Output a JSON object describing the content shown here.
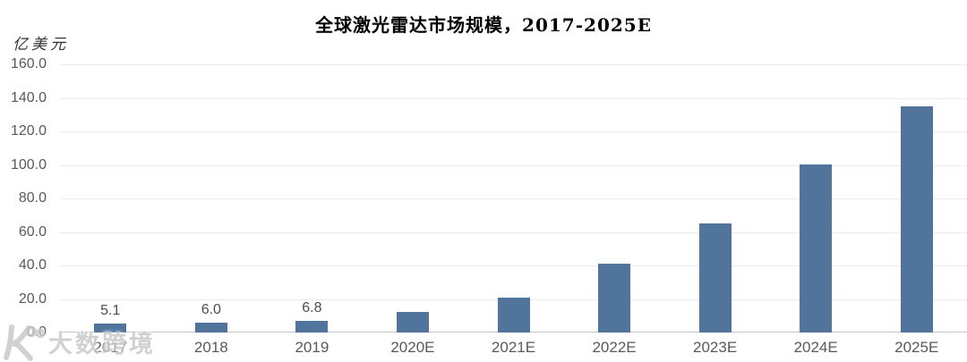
{
  "title": "全球激光雷达市场规模，2017-2025E",
  "y_axis": {
    "unit_label": "亿美元",
    "ticks": [
      "160.0",
      "140.0",
      "120.0",
      "100.0",
      "80.0",
      "60.0",
      "40.0",
      "20.0",
      "0.0"
    ]
  },
  "chart_data": {
    "type": "bar",
    "title": "全球激光雷达市场规模，2017-2025E",
    "ylabel": "亿美元",
    "xlabel": "",
    "ylim": [
      0,
      160
    ],
    "grid": true,
    "legend": false,
    "categories": [
      "2017",
      "2018",
      "2019",
      "2020E",
      "2021E",
      "2022E",
      "2023E",
      "2024E",
      "2025E"
    ],
    "values": [
      5.1,
      6.0,
      6.8,
      12,
      21,
      41,
      65,
      100,
      135
    ],
    "data_labels": [
      "5.1",
      "6.0",
      "6.8",
      "",
      "",
      "",
      "",
      "",
      ""
    ],
    "bar_color": "#50749B"
  },
  "watermark": {
    "logo_icon": "dashu-kuajing-logo",
    "text": "大数跨境"
  },
  "colors": {
    "background": "#ffffff",
    "bar": "#50749B",
    "gridline": "#eaeaea",
    "axis_line": "#c4c4c4",
    "tick_text": "#595959",
    "title_text": "#000000",
    "watermark": "#c9c9c9"
  }
}
